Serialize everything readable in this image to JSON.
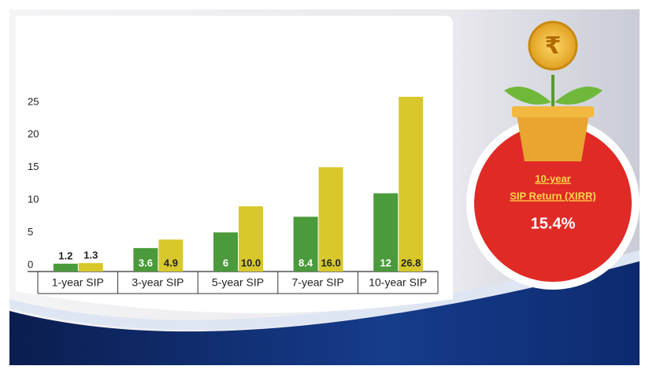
{
  "chart_data": {
    "type": "bar",
    "categories": [
      "1-year SIP",
      "3-year SIP",
      "5-year SIP",
      "7-year SIP",
      "10-year SIP"
    ],
    "series": [
      {
        "color": "#4b9a3b",
        "values": [
          1.2,
          3.6,
          6,
          8.4,
          12
        ]
      },
      {
        "color": "#d8c82c",
        "values": [
          1.3,
          4.9,
          10.0,
          16.0,
          26.8
        ],
        "value_labels": [
          "1.3",
          "4.9",
          "10.0",
          "16.0",
          "26.8"
        ]
      }
    ],
    "ylim": [
      0,
      28
    ],
    "yticks": [
      0,
      5,
      10,
      15,
      20,
      25
    ],
    "grid": false
  },
  "badge": {
    "line1": "10-year",
    "line2": "SIP Return (XIRR)",
    "value": "15.4%"
  }
}
